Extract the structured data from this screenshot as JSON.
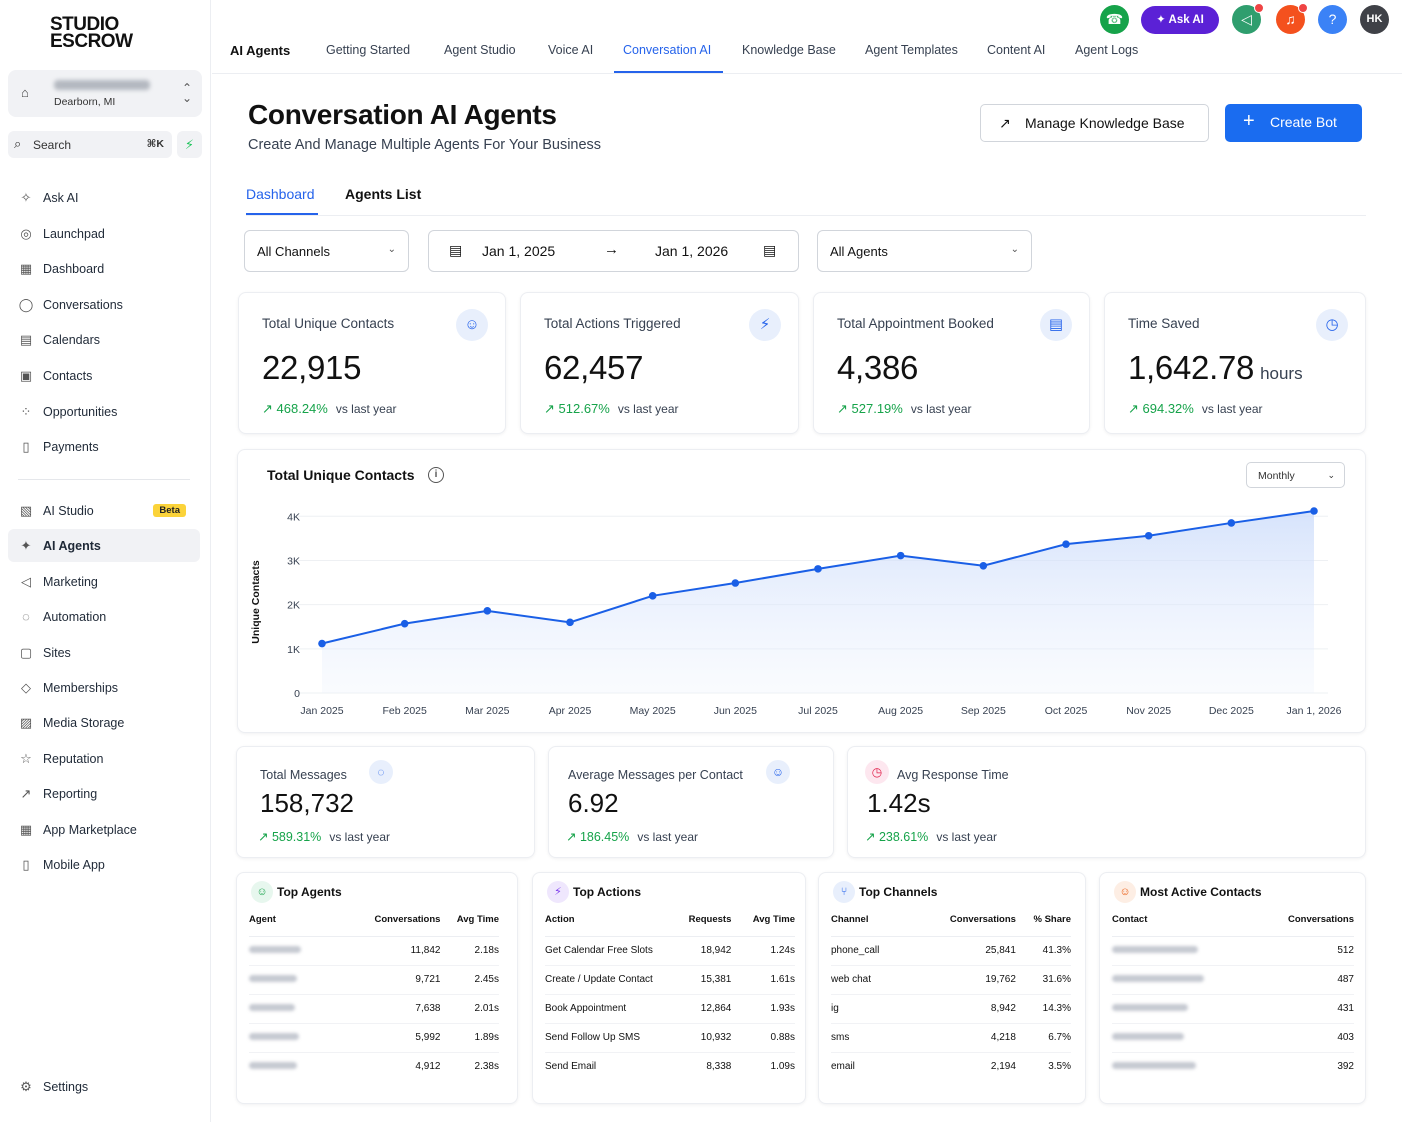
{
  "brand": {
    "line1": "STUDIO",
    "line2": "ESCROW"
  },
  "location": {
    "city": "Dearborn, MI"
  },
  "search": {
    "label": "Search",
    "shortcut": "⌘K"
  },
  "sidebar": {
    "items": [
      {
        "label": "Ask AI",
        "icon": "✧"
      },
      {
        "label": "Launchpad",
        "icon": "◎"
      },
      {
        "label": "Dashboard",
        "icon": "▦"
      },
      {
        "label": "Conversations",
        "icon": "◯"
      },
      {
        "label": "Calendars",
        "icon": "▤"
      },
      {
        "label": "Contacts",
        "icon": "▣"
      },
      {
        "label": "Opportunities",
        "icon": "⁘"
      },
      {
        "label": "Payments",
        "icon": "▯"
      }
    ],
    "items2": [
      {
        "label": "AI Studio",
        "icon": "▧",
        "badge": "Beta"
      },
      {
        "label": "AI Agents",
        "icon": "✦"
      },
      {
        "label": "Marketing",
        "icon": "◁"
      },
      {
        "label": "Automation",
        "icon": "◌"
      },
      {
        "label": "Sites",
        "icon": "▢"
      },
      {
        "label": "Memberships",
        "icon": "◇"
      },
      {
        "label": "Media Storage",
        "icon": "▨"
      },
      {
        "label": "Reputation",
        "icon": "☆"
      },
      {
        "label": "Reporting",
        "icon": "↗"
      },
      {
        "label": "App Marketplace",
        "icon": "▦"
      },
      {
        "label": "Mobile App",
        "icon": "▯"
      }
    ],
    "settings": "Settings"
  },
  "topnav": {
    "brand": "AI Agents",
    "tabs": [
      "Getting Started",
      "Agent Studio",
      "Voice AI",
      "Conversation AI",
      "Knowledge Base",
      "Agent Templates",
      "Content AI",
      "Agent Logs"
    ],
    "ask_ai": "Ask AI",
    "avatar": "HK",
    "help": "?"
  },
  "header": {
    "title": "Conversation AI Agents",
    "subtitle": "Create And Manage Multiple Agents For Your Business",
    "manage_kb": "Manage Knowledge Base",
    "create_bot": "Create Bot"
  },
  "tabs": {
    "dashboard": "Dashboard",
    "agents_list": "Agents List"
  },
  "filters": {
    "channels": "All Channels",
    "date_from": "Jan 1, 2025",
    "date_to": "Jan 1, 2026",
    "agents": "All Agents"
  },
  "kpis": [
    {
      "label": "Total Unique Contacts",
      "value": "22,915",
      "unit": "",
      "change": "468.24%",
      "vs": "vs last year"
    },
    {
      "label": "Total Actions Triggered",
      "value": "62,457",
      "unit": "",
      "change": "512.67%",
      "vs": "vs last year"
    },
    {
      "label": "Total Appointment Booked",
      "value": "4,386",
      "unit": "",
      "change": "527.19%",
      "vs": "vs last year"
    },
    {
      "label": "Time Saved",
      "value": "1,642.78",
      "unit": "hours",
      "change": "694.32%",
      "vs": "vs last year"
    }
  ],
  "kpis2": [
    {
      "label": "Total Messages",
      "value": "158,732",
      "change": "589.31%",
      "vs": "vs last year"
    },
    {
      "label": "Average Messages per Contact",
      "value": "6.92",
      "change": "186.45%",
      "vs": "vs last year"
    },
    {
      "label": "Avg Response Time",
      "value": "1.42s",
      "change": "238.61%",
      "vs": "vs last year"
    }
  ],
  "chart": {
    "title": "Total Unique Contacts",
    "period": "Monthly"
  },
  "chart_data": {
    "type": "area",
    "title": "Total Unique Contacts",
    "ylabel": "Unique Contacts",
    "xlabel": "",
    "categories": [
      "Jan 2025",
      "Feb 2025",
      "Mar 2025",
      "Apr 2025",
      "May 2025",
      "Jun 2025",
      "Jul 2025",
      "Aug 2025",
      "Sep 2025",
      "Oct 2025",
      "Nov 2025",
      "Dec 2025",
      "Jan 1, 2026"
    ],
    "values": [
      1120,
      1570,
      1860,
      1600,
      2200,
      2490,
      2810,
      3110,
      2880,
      3370,
      3560,
      3850,
      4120
    ],
    "ylim": [
      0,
      4000
    ],
    "yticks": [
      "0",
      "1K",
      "2K",
      "3K",
      "4K"
    ],
    "ytick_values": [
      0,
      1000,
      2000,
      3000,
      4000
    ],
    "grid": true,
    "color": "#1a5fe6"
  },
  "top_agents": {
    "title": "Top Agents",
    "headers": [
      "Agent",
      "Conversations",
      "Avg Time"
    ],
    "rows": [
      {
        "conversations": "11,842",
        "avg": "2.18s"
      },
      {
        "conversations": "9,721",
        "avg": "2.45s"
      },
      {
        "conversations": "7,638",
        "avg": "2.01s"
      },
      {
        "conversations": "5,992",
        "avg": "1.89s"
      },
      {
        "conversations": "4,912",
        "avg": "2.38s"
      }
    ]
  },
  "top_actions": {
    "title": "Top Actions",
    "headers": [
      "Action",
      "Requests",
      "Avg Time"
    ],
    "rows": [
      {
        "action": "Get Calendar Free Slots",
        "requests": "18,942",
        "avg": "1.24s"
      },
      {
        "action": "Create / Update Contact",
        "requests": "15,381",
        "avg": "1.61s"
      },
      {
        "action": "Book Appointment",
        "requests": "12,864",
        "avg": "1.93s"
      },
      {
        "action": "Send Follow Up SMS",
        "requests": "10,932",
        "avg": "0.88s"
      },
      {
        "action": "Send Email",
        "requests": "8,338",
        "avg": "1.09s"
      }
    ]
  },
  "top_channels": {
    "title": "Top Channels",
    "headers": [
      "Channel",
      "Conversations",
      "% Share"
    ],
    "rows": [
      {
        "channel": "phone_call",
        "conversations": "25,841",
        "share": "41.3%"
      },
      {
        "channel": "web chat",
        "conversations": "19,762",
        "share": "31.6%"
      },
      {
        "channel": "ig",
        "conversations": "8,942",
        "share": "14.3%"
      },
      {
        "channel": "sms",
        "conversations": "4,218",
        "share": "6.7%"
      },
      {
        "channel": "email",
        "conversations": "2,194",
        "share": "3.5%"
      }
    ]
  },
  "active_contacts": {
    "title": "Most Active Contacts",
    "headers": [
      "Contact",
      "Conversations"
    ],
    "rows": [
      {
        "conversations": "512"
      },
      {
        "conversations": "487"
      },
      {
        "conversations": "431"
      },
      {
        "conversations": "403"
      },
      {
        "conversations": "392"
      }
    ]
  },
  "colors": {
    "accent": "#2563eb",
    "primary_button": "#1a6cf0",
    "positive": "#16a34a",
    "ask_ai": "#5b21d6"
  }
}
